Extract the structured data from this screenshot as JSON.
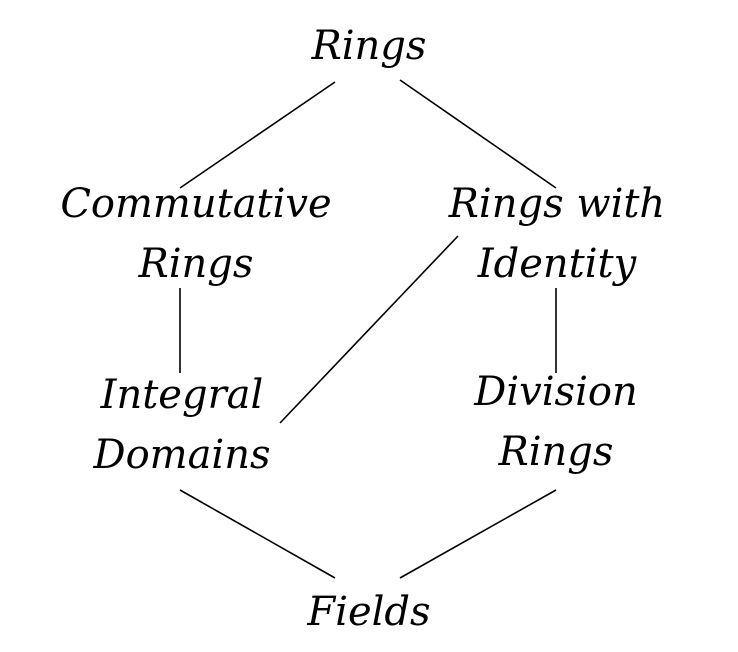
{
  "nodes": {
    "rings": {
      "lines": [
        "Rings"
      ]
    },
    "commutative_rings": {
      "lines": [
        "Commutative",
        "Rings"
      ]
    },
    "rings_with_identity": {
      "lines": [
        "Rings with",
        "Identity"
      ]
    },
    "integral_domains": {
      "lines": [
        "Integral",
        "Domains"
      ]
    },
    "division_rings": {
      "lines": [
        "Division",
        "Rings"
      ]
    },
    "fields": {
      "lines": [
        "Fields"
      ]
    }
  },
  "edges": [
    [
      "rings",
      "commutative_rings"
    ],
    [
      "rings",
      "rings_with_identity"
    ],
    [
      "commutative_rings",
      "integral_domains"
    ],
    [
      "rings_with_identity",
      "integral_domains"
    ],
    [
      "rings_with_identity",
      "division_rings"
    ],
    [
      "integral_domains",
      "fields"
    ],
    [
      "division_rings",
      "fields"
    ]
  ],
  "colors": {
    "ink": "#000000",
    "background": "#ffffff"
  }
}
